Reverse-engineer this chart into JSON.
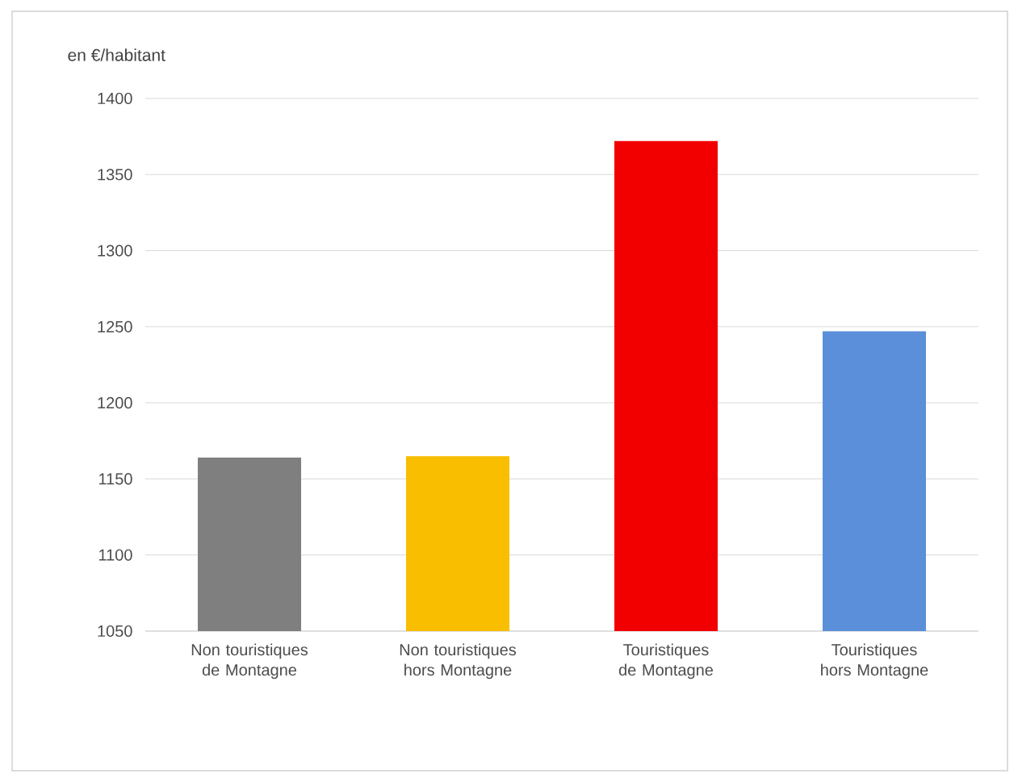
{
  "chart_data": {
    "type": "bar",
    "ylabel": "en €/habitant",
    "categories": [
      "Non touristiques de Montagne",
      "Non touristiques hors Montagne",
      "Touristiques de Montagne",
      "Touristiques hors Montagne"
    ],
    "values": [
      1164,
      1165,
      1372,
      1247
    ],
    "colors": [
      "#7f7f7f",
      "#f9be00",
      "#f20000",
      "#5b8fd9"
    ],
    "ylim": [
      1050,
      1400
    ],
    "yticks": [
      1050,
      1100,
      1150,
      1200,
      1250,
      1300,
      1350,
      1400
    ],
    "grid": "y"
  }
}
